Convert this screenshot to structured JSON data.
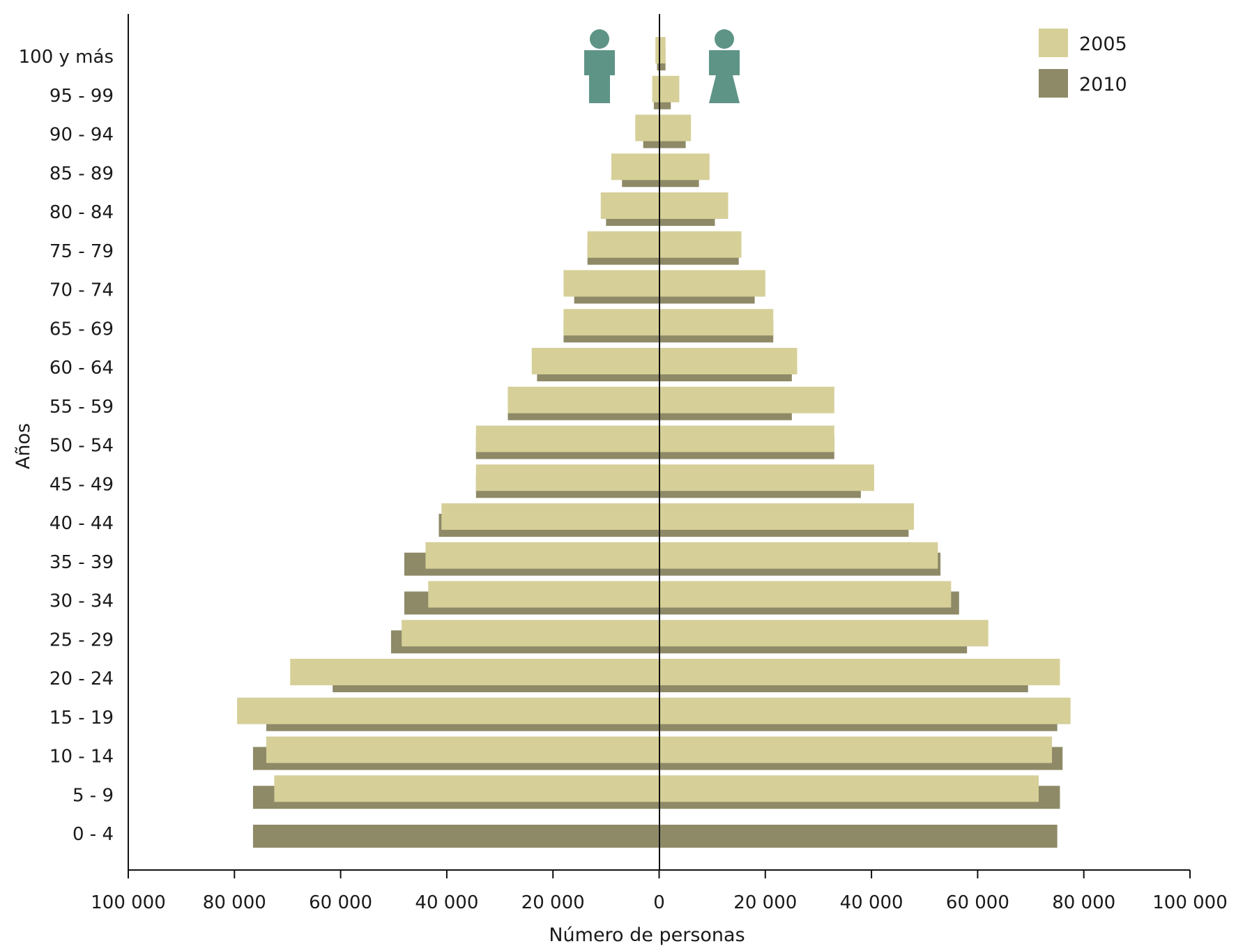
{
  "colors": {
    "series_2005": "#d6cf98",
    "series_2010": "#8e8a67",
    "axis": "#111111",
    "icon": "#5e9486"
  },
  "icons": {
    "left": "male-icon",
    "right": "female-icon"
  },
  "chart_data": {
    "type": "bar",
    "orientation": "horizontal",
    "layout": "population-pyramid",
    "ylabel": "Años",
    "xlabel": "Número de personas",
    "xlim": [
      -100000,
      100000
    ],
    "x_ticks": [
      -100000,
      -80000,
      -60000,
      -40000,
      -20000,
      0,
      20000,
      40000,
      60000,
      80000,
      100000
    ],
    "x_tick_labels": [
      "100 000",
      "80 000",
      "60 000",
      "40 000",
      "20 000",
      "0",
      "20 000",
      "40 000",
      "60 000",
      "80 000",
      "100 000"
    ],
    "legend_position": "top-right",
    "categories": [
      "0 - 4",
      "5 - 9",
      "10 - 14",
      "15 - 19",
      "20 - 24",
      "25 - 29",
      "30 - 34",
      "35 - 39",
      "40 - 44",
      "45 - 49",
      "50 - 54",
      "55 - 59",
      "60 - 64",
      "65 - 69",
      "70 - 74",
      "75 - 79",
      "80 - 84",
      "85 - 89",
      "90 - 94",
      "95 - 99",
      "100 y más"
    ],
    "series": [
      {
        "name": "2005",
        "left": [
          0,
          72500,
          74000,
          79500,
          69500,
          48500,
          43500,
          44000,
          41000,
          34500,
          34500,
          28500,
          24000,
          18000,
          18000,
          13500,
          11000,
          9000,
          4500,
          1300,
          700
        ],
        "right": [
          0,
          71500,
          74000,
          77500,
          75500,
          62000,
          55000,
          52500,
          48000,
          40500,
          33000,
          33000,
          26000,
          21500,
          20000,
          15500,
          13000,
          9500,
          6000,
          3800,
          1200
        ]
      },
      {
        "name": "2010",
        "left": [
          76500,
          76500,
          76500,
          74000,
          61500,
          50500,
          48000,
          48000,
          41500,
          34500,
          34500,
          28500,
          23000,
          18000,
          16000,
          13500,
          10000,
          7000,
          3000,
          1000,
          400
        ],
        "right": [
          75000,
          75500,
          76000,
          75000,
          69500,
          58000,
          56500,
          53000,
          47000,
          38000,
          33000,
          25000,
          25000,
          21500,
          18000,
          15000,
          10500,
          7500,
          5000,
          2200,
          1200
        ]
      }
    ]
  }
}
